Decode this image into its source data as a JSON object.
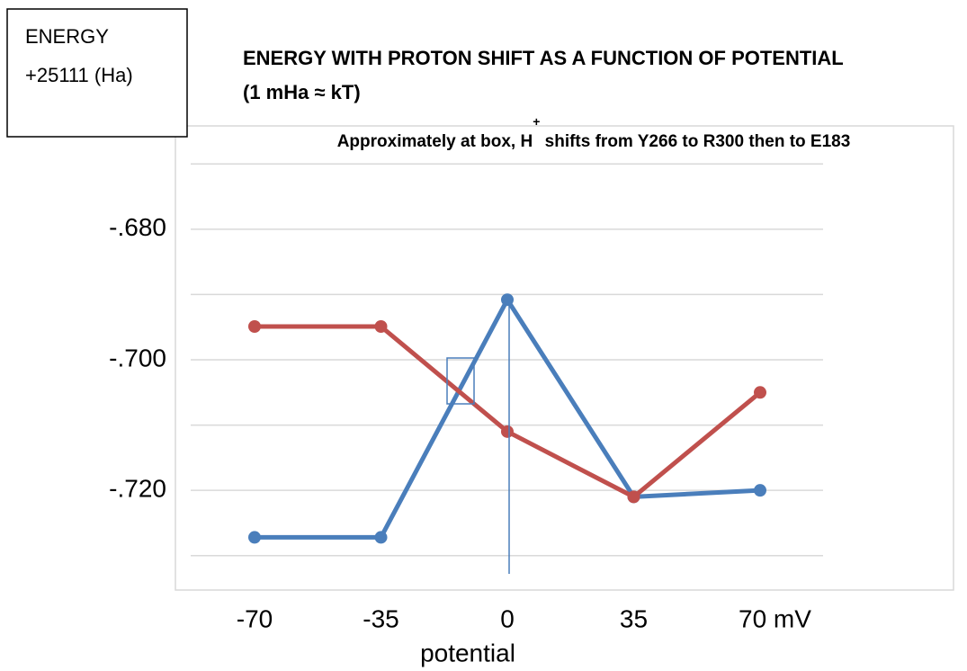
{
  "chart_data": {
    "type": "line",
    "title": [
      "ENERGY WITH PROTON SHIFT AS A FUNCTION OF POTENTIAL",
      "(1 mHa ≈ kT)"
    ],
    "subtitle": [
      "Approximately at box, H",
      "+",
      " shifts from Y266 to R300 then to E183"
    ],
    "y_label": [
      "ENERGY",
      "+25111 (Ha)"
    ],
    "x_label": "potential",
    "categories": [
      "-70",
      "-35",
      "0",
      "35",
      "70 mV"
    ],
    "series": [
      {
        "name": "blue",
        "color": "#4a7ebb",
        "values": [
          -0.7272,
          -0.7272,
          -0.6908,
          -0.721,
          -0.72
        ]
      },
      {
        "name": "red",
        "color": "#c0504d",
        "values": [
          -0.6949,
          -0.6949,
          -0.711,
          -0.721,
          -0.705
        ]
      }
    ],
    "ylim": [
      -0.735,
      -0.665
    ],
    "yticks": [
      {
        "value": -0.68,
        "label": "-.680"
      },
      {
        "value": -0.7,
        "label": "-.700"
      },
      {
        "value": -0.72,
        "label": "-.720"
      }
    ],
    "ygrid": [
      -0.67,
      -0.68,
      -0.69,
      -0.7,
      -0.71,
      -0.72,
      -0.73
    ],
    "grid": true
  }
}
